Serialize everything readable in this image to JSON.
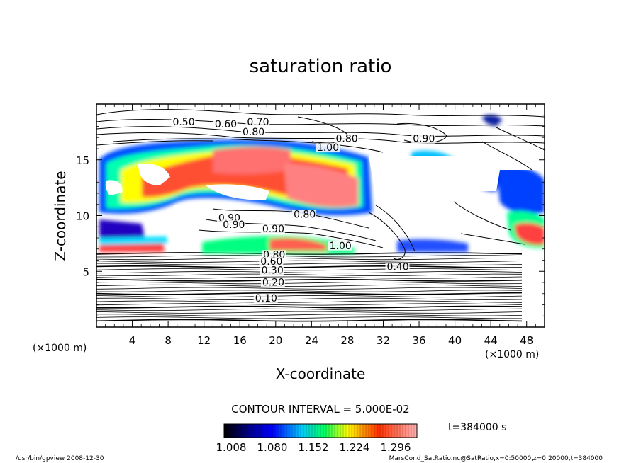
{
  "chart_data": {
    "type": "heatmap",
    "title": "saturation ratio",
    "xlabel": "X-coordinate",
    "ylabel": "Z-coordinate",
    "x_unit": "(×1000 m)",
    "x_unit_right": "(×1000 m)",
    "y_unit": "(×1000 m)",
    "xlim": [
      0,
      50
    ],
    "ylim": [
      0,
      20
    ],
    "xticks": [
      "4",
      "8",
      "12",
      "16",
      "20",
      "24",
      "28",
      "32",
      "36",
      "40",
      "44",
      "48"
    ],
    "yticks": [
      "5",
      "10",
      "15"
    ],
    "contour_labels": [
      {
        "x": 8.5,
        "y": 18.1,
        "text": "0.50"
      },
      {
        "x": 13.2,
        "y": 17.9,
        "text": "0.60"
      },
      {
        "x": 16.8,
        "y": 18.1,
        "text": "0.70"
      },
      {
        "x": 16.3,
        "y": 17.2,
        "text": "0.80"
      },
      {
        "x": 26.7,
        "y": 16.6,
        "text": "0.80"
      },
      {
        "x": 24.6,
        "y": 15.8,
        "text": "1.00"
      },
      {
        "x": 35.3,
        "y": 16.6,
        "text": "0.90"
      },
      {
        "x": 13.6,
        "y": 9.5,
        "text": "0.90"
      },
      {
        "x": 14.1,
        "y": 8.9,
        "text": "0.90"
      },
      {
        "x": 18.5,
        "y": 8.5,
        "text": "0.90"
      },
      {
        "x": 22.0,
        "y": 9.8,
        "text": "0.80"
      },
      {
        "x": 26.0,
        "y": 7.0,
        "text": "1.00"
      },
      {
        "x": 18.6,
        "y": 6.2,
        "text": "0.80"
      },
      {
        "x": 18.3,
        "y": 5.6,
        "text": "0.60"
      },
      {
        "x": 18.4,
        "y": 4.8,
        "text": "0.30"
      },
      {
        "x": 18.5,
        "y": 3.7,
        "text": "0.20"
      },
      {
        "x": 17.7,
        "y": 2.3,
        "text": "0.10"
      },
      {
        "x": 32.4,
        "y": 5.1,
        "text": "0.40"
      }
    ],
    "colorbar": {
      "ticks": [
        "1.008",
        "1.080",
        "1.152",
        "1.224",
        "1.296"
      ],
      "colors": [
        "#000000",
        "#000080",
        "#0000ff",
        "#00c8ff",
        "#00ff60",
        "#ffff00",
        "#ff3000",
        "#ffb4b4"
      ]
    }
  },
  "contour_interval": "CONTOUR INTERVAL = 5.000E-02",
  "time_label": "t=384000 s",
  "footer": {
    "left": "/usr/bin/gpview  2008-12-30",
    "right": "MarsCond_SatRatio.nc@SatRatio,x=0:50000,z=0:20000,t=384000"
  }
}
